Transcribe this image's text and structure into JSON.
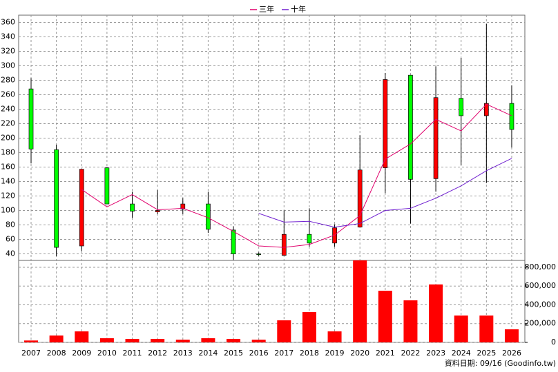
{
  "chart_data": {
    "type": "candlestick",
    "categories": [
      "2007",
      "2008",
      "2009",
      "2010",
      "2011",
      "2012",
      "2013",
      "2014",
      "2015",
      "2016",
      "2017",
      "2018",
      "2019",
      "2020",
      "2021",
      "2022",
      "2023",
      "2024",
      "2025",
      "2026"
    ],
    "open": [
      268,
      184,
      51,
      159,
      109,
      98,
      102,
      109,
      73,
      40,
      38,
      67,
      55,
      77,
      159,
      287,
      144,
      255,
      231,
      248
    ],
    "high": [
      283,
      191,
      157,
      159,
      126,
      128,
      117,
      126,
      78,
      42,
      100,
      103,
      81,
      204,
      290,
      287,
      299,
      311,
      358,
      273
    ],
    "low": [
      165,
      37,
      44,
      109,
      90,
      95,
      95,
      69,
      32,
      37,
      38,
      50,
      50,
      77,
      124,
      82,
      126,
      163,
      138,
      187
    ],
    "close": [
      185,
      49,
      157,
      109,
      99,
      100,
      109,
      74,
      40,
      39,
      67,
      55,
      76,
      156,
      281,
      143,
      256,
      231,
      248,
      212
    ],
    "up_color": "#ff0000",
    "down_color": "#00ff00",
    "series": [
      {
        "name": "三年",
        "color": "#e0006c",
        "values": [
          null,
          null,
          129,
          105,
          122,
          101,
          103,
          90,
          71,
          51,
          49,
          53,
          66,
          93,
          171,
          192,
          226,
          210,
          247,
          231
        ]
      },
      {
        "name": "十年",
        "color": "#7020d0",
        "values": [
          null,
          null,
          null,
          null,
          null,
          null,
          null,
          null,
          null,
          96,
          84,
          85,
          77,
          82,
          100,
          103,
          117,
          134,
          155,
          172
        ]
      }
    ],
    "ylim": [
      31,
      370
    ],
    "yticks": [
      40,
      60,
      80,
      100,
      120,
      140,
      160,
      180,
      200,
      220,
      240,
      260,
      280,
      300,
      320,
      340,
      360
    ],
    "grid": true,
    "volume": {
      "type": "bar",
      "color": "#ff0000",
      "values": [
        20000,
        73000,
        117000,
        44000,
        37000,
        37000,
        29000,
        44000,
        37000,
        29000,
        235000,
        323000,
        117000,
        873000,
        550000,
        448000,
        617000,
        286000,
        286000,
        139000
      ],
      "ylim": [
        0,
        873000
      ],
      "yticks": [
        0,
        {
          "value": 200000,
          "label": "200,000"
        },
        {
          "value": 400000,
          "label": "400,000"
        },
        {
          "value": 600000,
          "label": "600,000"
        },
        {
          "value": 800000,
          "label": "800,000"
        }
      ]
    },
    "footnote": "資料日期: 09/16 (Goodinfo.tw)"
  }
}
